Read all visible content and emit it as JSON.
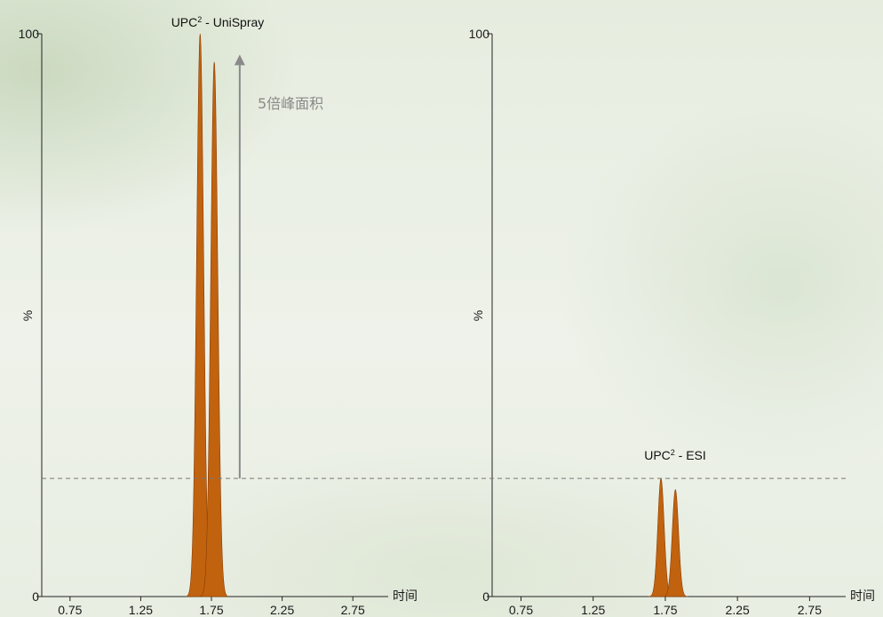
{
  "chart_data": [
    {
      "type": "line",
      "title_main": "UPC",
      "title_sup": "2",
      "title_rest": " - UniSpray",
      "ylabel": "%",
      "xlabel": "时间",
      "x_ticks": [
        0.75,
        1.25,
        1.75,
        2.25,
        2.75
      ],
      "x_tick_labels": [
        "0.75",
        "1.25",
        "1.75",
        "2.25",
        "2.75"
      ],
      "y_ticks": [
        0,
        100
      ],
      "y_tick_labels": [
        "0",
        "100"
      ],
      "xlim": [
        0.55,
        3.0
      ],
      "ylim": [
        0,
        100
      ],
      "fill_color": "#c1620f",
      "series": [
        {
          "peaks": [
            {
              "x": 1.67,
              "height": 100,
              "width": 0.025
            },
            {
              "x": 1.77,
              "height": 95,
              "width": 0.025
            }
          ]
        }
      ],
      "reference_line": {
        "y": 21,
        "style": "dashed",
        "color": "#777777"
      },
      "annotation": {
        "text": "5倍峰面积",
        "arrow_x": 1.95,
        "arrow_from_y": 21,
        "arrow_to_y": 96,
        "color": "#8a8a8a"
      }
    },
    {
      "type": "line",
      "title_main": "UPC",
      "title_sup": "2",
      "title_rest": " - ESI",
      "ylabel": "%",
      "xlabel": "时间",
      "x_ticks": [
        0.75,
        1.25,
        1.75,
        2.25,
        2.75
      ],
      "x_tick_labels": [
        "0.75",
        "1.25",
        "1.75",
        "2.25",
        "2.75"
      ],
      "y_ticks": [
        0,
        100
      ],
      "y_tick_labels": [
        "0",
        "100"
      ],
      "xlim": [
        0.55,
        3.0
      ],
      "ylim": [
        0,
        100
      ],
      "fill_color": "#c1620f",
      "series": [
        {
          "peaks": [
            {
              "x": 1.72,
              "height": 21,
              "width": 0.022
            },
            {
              "x": 1.82,
              "height": 19,
              "width": 0.022
            }
          ]
        }
      ],
      "reference_line": {
        "y": 21,
        "style": "dashed",
        "color": "#777777"
      }
    }
  ]
}
